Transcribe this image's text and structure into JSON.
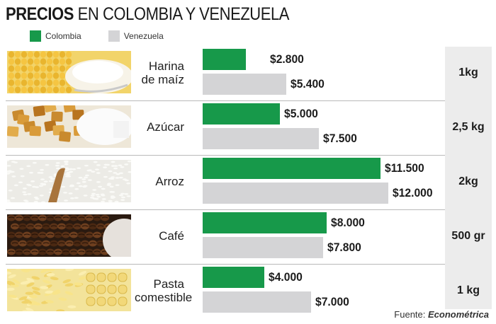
{
  "title_strong": "PRECIOS",
  "title_light": "EN COLOMBIA Y VENEZUELA",
  "legend": [
    {
      "name": "Colombia",
      "color": "#17994a"
    },
    {
      "name": "Venezuela",
      "color": "#d4d4d6"
    }
  ],
  "chart_data": {
    "type": "bar",
    "orientation": "horizontal",
    "title": "PRECIOS EN COLOMBIA Y VENEZUELA",
    "categories": [
      "Harina de maíz",
      "Azúcar",
      "Arroz",
      "Café",
      "Pasta comestible"
    ],
    "units": [
      "1kg",
      "2,5 kg",
      "2kg",
      "500 gr",
      "1 kg"
    ],
    "series": [
      {
        "name": "Colombia",
        "values": [
          2800,
          5000,
          11500,
          8000,
          4000
        ],
        "labels": [
          "$2.800",
          "$5.000",
          "$11.500",
          "$8.000",
          "$4.000"
        ],
        "color": "#17994a"
      },
      {
        "name": "Venezuela",
        "values": [
          5400,
          7500,
          12000,
          7800,
          7000
        ],
        "labels": [
          "$5.400",
          "$7.500",
          "$12.000",
          "$7.800",
          "$7.000"
        ],
        "color": "#d4d4d6"
      }
    ],
    "xlim": [
      0,
      12000
    ],
    "grid": false,
    "legend_position": "top-left"
  },
  "products": [
    {
      "label_lines": [
        "Harina",
        "de maíz"
      ],
      "thumb": "corn-flour-image"
    },
    {
      "label_lines": [
        "Azúcar"
      ],
      "thumb": "sugar-image"
    },
    {
      "label_lines": [
        "Arroz"
      ],
      "thumb": "rice-image"
    },
    {
      "label_lines": [
        "Café"
      ],
      "thumb": "coffee-beans-image"
    },
    {
      "label_lines": [
        "Pasta",
        "comestible"
      ],
      "thumb": "pasta-image"
    }
  ],
  "source": {
    "prefix": "Fuente:",
    "name": "Econométrica"
  }
}
